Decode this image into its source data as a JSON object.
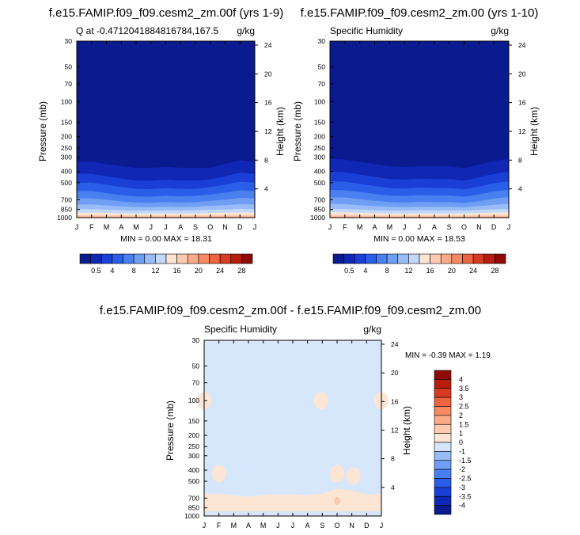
{
  "palette": {
    "ramp": [
      "#0a1a8f",
      "#1027b5",
      "#1a3fd6",
      "#2a5ee8",
      "#4a7ff0",
      "#6f9ef4",
      "#98bcf7",
      "#c3d9fb",
      "#fde5d3",
      "#fccab0",
      "#fbab88",
      "#f78a62",
      "#ef6440",
      "#d83b23",
      "#b81e10",
      "#8f0a06"
    ],
    "diff_ramp": [
      "#0a1a8f",
      "#1027b5",
      "#1a3fd6",
      "#2a5ee8",
      "#4a7ff0",
      "#6f9ef4",
      "#98bcf7",
      "#d6e6fb",
      "#fde5d3",
      "#fccab0",
      "#fbab88",
      "#f78a62",
      "#ef6440",
      "#d83b23",
      "#b81e10",
      "#8f0a06"
    ]
  },
  "chart_data": [
    {
      "type": "heatmap",
      "title": "f.e15.FAMIP.f09_f09.cesm2_zm.00f (yrs 1-9)",
      "left_label": "Q at -0.4712041884816784,167.5",
      "units_label": "g/kg",
      "xlabel": "",
      "ylabel": "Pressure (mb)",
      "y2label": "Height (km)",
      "x_ticks": [
        "J",
        "F",
        "M",
        "A",
        "M",
        "J",
        "J",
        "A",
        "S",
        "O",
        "N",
        "D",
        "J"
      ],
      "y_ticks": [
        30,
        50,
        70,
        100,
        150,
        200,
        250,
        300,
        400,
        500,
        700,
        850,
        1000
      ],
      "y2_ticks": [
        24,
        20,
        16,
        12,
        8,
        4
      ],
      "min_max_text": "MIN =  0.00 MAX = 18.31",
      "colorbar_labels": [
        "0.5",
        "4",
        "8",
        "12",
        "16",
        "20",
        "24",
        "28"
      ],
      "contour_levels": [
        0.5,
        2,
        4,
        6,
        8,
        10,
        12,
        14,
        16,
        18,
        20,
        22,
        24,
        26,
        28
      ],
      "level_pressures": [
        [
          330,
          330,
          345,
          360,
          372,
          372,
          365,
          372,
          372,
          372,
          345,
          320,
          330
        ],
        [
          420,
          420,
          440,
          460,
          478,
          480,
          470,
          478,
          478,
          470,
          440,
          410,
          420
        ],
        [
          500,
          500,
          520,
          545,
          565,
          568,
          555,
          565,
          565,
          545,
          520,
          490,
          500
        ],
        [
          590,
          590,
          615,
          640,
          655,
          660,
          648,
          655,
          650,
          630,
          610,
          580,
          590
        ],
        [
          680,
          680,
          700,
          725,
          740,
          745,
          735,
          740,
          735,
          715,
          700,
          675,
          680
        ],
        [
          770,
          770,
          785,
          800,
          810,
          815,
          805,
          810,
          805,
          790,
          780,
          765,
          770
        ],
        [
          845,
          845,
          855,
          865,
          870,
          872,
          865,
          870,
          865,
          855,
          850,
          840,
          845
        ],
        [
          905,
          905,
          910,
          918,
          920,
          922,
          918,
          920,
          918,
          912,
          908,
          900,
          905
        ],
        [
          950,
          950,
          952,
          955,
          958,
          960,
          958,
          960,
          958,
          955,
          952,
          948,
          950
        ],
        [
          975,
          975,
          976,
          978,
          980,
          980,
          978,
          980,
          978,
          976,
          975,
          973,
          975
        ]
      ]
    },
    {
      "type": "heatmap",
      "title": "f.e15.FAMIP.f09_f09.cesm2_zm.00 (yrs 1-10)",
      "left_label": "Specific Humidity",
      "units_label": "g/kg",
      "xlabel": "",
      "ylabel": "Pressure (mb)",
      "y2label": "Height (km)",
      "x_ticks": [
        "J",
        "F",
        "M",
        "A",
        "M",
        "J",
        "J",
        "A",
        "S",
        "O",
        "N",
        "D",
        "J"
      ],
      "y_ticks": [
        30,
        50,
        70,
        100,
        150,
        200,
        250,
        300,
        400,
        500,
        700,
        850,
        1000
      ],
      "y2_ticks": [
        24,
        20,
        16,
        12,
        8,
        4
      ],
      "min_max_text": "MIN =  0.00 MAX = 18.53",
      "colorbar_labels": [
        "0.5",
        "4",
        "8",
        "12",
        "16",
        "20",
        "24",
        "28"
      ],
      "contour_levels": [
        0.5,
        2,
        4,
        6,
        8,
        10,
        12,
        14,
        16,
        18,
        20,
        22,
        24,
        26,
        28
      ],
      "level_pressures": [
        [
          310,
          315,
          330,
          345,
          360,
          365,
          360,
          360,
          360,
          375,
          350,
          325,
          310
        ],
        [
          400,
          405,
          425,
          445,
          465,
          470,
          462,
          465,
          465,
          480,
          450,
          420,
          400
        ],
        [
          485,
          490,
          510,
          535,
          555,
          560,
          550,
          555,
          555,
          570,
          540,
          505,
          485
        ],
        [
          575,
          580,
          600,
          625,
          645,
          650,
          640,
          645,
          645,
          660,
          630,
          595,
          575
        ],
        [
          665,
          670,
          690,
          715,
          735,
          740,
          730,
          735,
          735,
          748,
          720,
          685,
          665
        ],
        [
          760,
          765,
          780,
          795,
          808,
          812,
          805,
          808,
          808,
          815,
          795,
          775,
          760
        ],
        [
          840,
          842,
          850,
          862,
          868,
          870,
          865,
          868,
          868,
          872,
          858,
          848,
          840
        ],
        [
          900,
          902,
          908,
          915,
          920,
          922,
          918,
          920,
          920,
          922,
          912,
          905,
          900
        ],
        [
          948,
          948,
          950,
          955,
          958,
          960,
          958,
          960,
          958,
          960,
          953,
          950,
          948
        ],
        [
          975,
          975,
          976,
          978,
          980,
          980,
          978,
          980,
          978,
          980,
          976,
          975,
          975
        ]
      ]
    },
    {
      "type": "heatmap",
      "title": "f.e15.FAMIP.f09_f09.cesm2_zm.00f - f.e15.FAMIP.f09_f09.cesm2_zm.00",
      "left_label": "Specific Humidity",
      "units_label": "g/kg",
      "xlabel": "",
      "ylabel": "Pressure (mb)",
      "y2label": "Height (km)",
      "x_ticks": [
        "J",
        "F",
        "M",
        "A",
        "M",
        "J",
        "J",
        "A",
        "S",
        "O",
        "N",
        "D",
        "J"
      ],
      "y_ticks": [
        30,
        50,
        70,
        100,
        150,
        200,
        250,
        300,
        400,
        500,
        700,
        850,
        1000
      ],
      "y2_ticks": [
        24,
        20,
        16,
        12,
        8,
        4
      ],
      "min_max_text": "MIN = -0.39 MAX =  1.19",
      "colorbar_labels": [
        "4",
        "3.5",
        "3",
        "2.5",
        "2",
        "1.5",
        "1",
        "0",
        "-1",
        "-1.5",
        "-2",
        "-2.5",
        "-3",
        "-3.5",
        "-4"
      ],
      "background_range": [
        -1,
        0
      ],
      "positive_band_top_pressure": [
        640,
        640,
        660,
        680,
        655,
        650,
        650,
        660,
        640,
        580,
        600,
        650,
        640
      ],
      "positive_blobs": [
        {
          "month": 0.0,
          "pressure": 100,
          "range": [
            0,
            1
          ]
        },
        {
          "month": 1.0,
          "pressure": 430,
          "range": [
            0,
            1
          ]
        },
        {
          "month": 7.9,
          "pressure": 100,
          "range": [
            0,
            1
          ]
        },
        {
          "month": 9.0,
          "pressure": 430,
          "range": [
            0,
            1
          ]
        },
        {
          "month": 10.1,
          "pressure": 450,
          "range": [
            0,
            1
          ]
        },
        {
          "month": 12.0,
          "pressure": 100,
          "range": [
            0,
            1
          ]
        },
        {
          "month": 9.0,
          "pressure": 740,
          "range": [
            1,
            1.5
          ]
        }
      ]
    }
  ]
}
